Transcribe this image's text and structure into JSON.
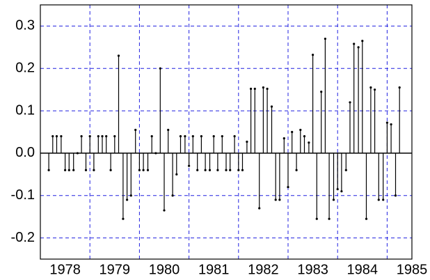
{
  "chart_data": {
    "type": "stem",
    "color": "#000000",
    "grid_color": "#2020e0",
    "xlim": [
      1978,
      1985.5
    ],
    "ylim": [
      -0.25,
      0.35
    ],
    "xticks": [
      {
        "value": 1978.5,
        "label": "1978"
      },
      {
        "value": 1979.5,
        "label": "1979"
      },
      {
        "value": 1980.5,
        "label": "1980"
      },
      {
        "value": 1981.5,
        "label": "1981"
      },
      {
        "value": 1982.5,
        "label": "1982"
      },
      {
        "value": 1983.5,
        "label": "1983"
      },
      {
        "value": 1984.5,
        "label": "1984"
      },
      {
        "value": 1985.5,
        "label": "1985"
      }
    ],
    "xgrid": [
      1979,
      1980,
      1981,
      1982,
      1983,
      1984,
      1985
    ],
    "yticks": [
      -0.2,
      -0.1,
      {
        "value": 0,
        "label": "0.0"
      },
      0.1,
      0.2,
      0.3
    ],
    "grid": true,
    "x": [
      1978.17,
      1978.25,
      1978.33,
      1978.42,
      1978.5,
      1978.58,
      1978.67,
      1978.75,
      1978.83,
      1978.92,
      1979,
      1979.08,
      1979.17,
      1979.25,
      1979.33,
      1979.42,
      1979.5,
      1979.58,
      1979.67,
      1979.75,
      1979.83,
      1979.92,
      1980,
      1980.08,
      1980.17,
      1980.25,
      1980.33,
      1980.42,
      1980.5,
      1980.58,
      1980.67,
      1980.75,
      1980.83,
      1980.92,
      1981,
      1981.08,
      1981.17,
      1981.25,
      1981.33,
      1981.42,
      1981.5,
      1981.58,
      1981.67,
      1981.75,
      1981.83,
      1981.92,
      1982,
      1982.08,
      1982.17,
      1982.25,
      1982.33,
      1982.42,
      1982.5,
      1982.58,
      1982.67,
      1982.75,
      1982.83,
      1982.92,
      1983,
      1983.08,
      1983.17,
      1983.25,
      1983.33,
      1983.42,
      1983.5,
      1983.58,
      1983.67,
      1983.75,
      1983.83,
      1983.92,
      1984,
      1984.08,
      1984.17,
      1984.25,
      1984.33,
      1984.42,
      1984.5,
      1984.58,
      1984.67,
      1984.75,
      1984.83,
      1984.92,
      1985,
      1985.08,
      1985.17,
      1985.25
    ],
    "values": [
      -0.04,
      0.04,
      0.04,
      0.04,
      -0.04,
      -0.04,
      -0.04,
      0,
      0.04,
      -0.04,
      0.04,
      -0.04,
      0.04,
      0.04,
      0.04,
      -0.04,
      0.04,
      0.23,
      -0.155,
      -0.11,
      -0.1,
      0.055,
      -0.04,
      -0.04,
      -0.04,
      0.04,
      0,
      0.2,
      -0.135,
      0.055,
      -0.1,
      -0.05,
      0.04,
      0.04,
      -0.03,
      0.04,
      -0.04,
      0.04,
      -0.04,
      -0.04,
      0.04,
      -0.04,
      0.04,
      -0.04,
      -0.04,
      0.04,
      -0.04,
      -0.04,
      0.027,
      0.152,
      0.152,
      -0.13,
      0.155,
      0.152,
      0.11,
      -0.11,
      -0.11,
      0.035,
      -0.08,
      0.05,
      -0.04,
      0.055,
      0.04,
      0.025,
      0.232,
      -0.155,
      0.145,
      0.27,
      -0.155,
      -0.11,
      -0.085,
      -0.09,
      -0.04,
      0.12,
      0.258,
      0.25,
      0.265,
      -0.155,
      0.155,
      0.15,
      -0.11,
      -0.11,
      0.072,
      0.068,
      -0.1,
      0.155
    ]
  }
}
